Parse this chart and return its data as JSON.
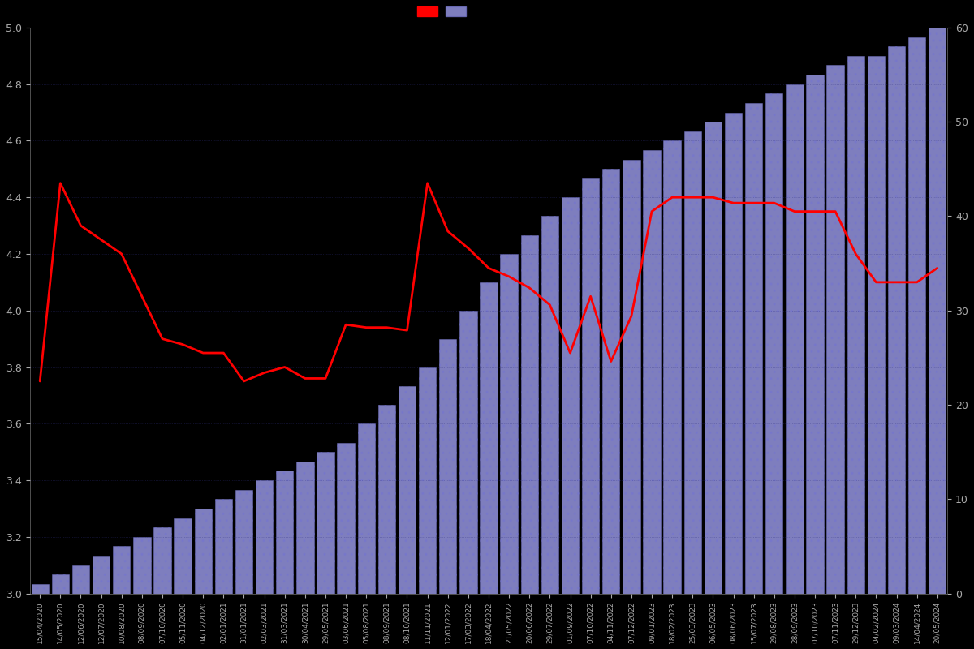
{
  "background_color": "#000000",
  "bar_color": "#aaaaff",
  "bar_edge_color": "#7777cc",
  "line_color": "#ff0000",
  "line_width": 2.0,
  "left_ylim": [
    3.0,
    5.0
  ],
  "right_ylim": [
    0,
    60
  ],
  "left_yticks": [
    3.0,
    3.2,
    3.4,
    3.6,
    3.8,
    4.0,
    4.2,
    4.4,
    4.6,
    4.8,
    5.0
  ],
  "right_yticks": [
    0,
    10,
    20,
    30,
    40,
    50,
    60
  ],
  "dates": [
    "15/04/2020",
    "14/05/2020",
    "12/06/2020",
    "12/07/2020",
    "10/08/2020",
    "08/09/2020",
    "07/10/2020",
    "05/11/2020",
    "04/12/2020",
    "02/01/2021",
    "31/01/2021",
    "02/03/2021",
    "31/03/2021",
    "30/04/2021",
    "29/05/2021",
    "03/06/2021",
    "05/08/2021",
    "08/09/2021",
    "08/10/2021",
    "11/11/2021",
    "12/01/2022",
    "17/03/2022",
    "18/04/2022",
    "21/05/2022",
    "20/06/2022",
    "29/07/2022",
    "01/09/2022",
    "07/10/2022",
    "04/11/2022",
    "07/12/2022",
    "09/01/2023",
    "18/02/2023",
    "25/03/2023",
    "06/05/2023",
    "08/06/2023",
    "15/07/2023",
    "29/08/2023",
    "28/09/2023",
    "07/10/2023",
    "07/11/2023",
    "29/12/2023",
    "04/02/2024",
    "09/03/2024",
    "14/04/2024",
    "20/05/2024"
  ],
  "cumulative_reviews": [
    1,
    2,
    3,
    4,
    5,
    6,
    7,
    8,
    9,
    10,
    11,
    12,
    13,
    14,
    15,
    16,
    18,
    20,
    22,
    24,
    27,
    30,
    33,
    36,
    38,
    40,
    42,
    44,
    45,
    46,
    47,
    48,
    49,
    50,
    51,
    52,
    53,
    54,
    55,
    56,
    57,
    57,
    58,
    59,
    60
  ],
  "avg_ratings": [
    3.75,
    4.45,
    4.3,
    4.25,
    4.2,
    4.05,
    3.9,
    3.88,
    3.85,
    3.85,
    3.75,
    3.78,
    3.8,
    3.76,
    3.76,
    3.95,
    3.94,
    3.94,
    3.93,
    4.45,
    4.28,
    4.22,
    4.15,
    4.12,
    4.08,
    4.02,
    3.85,
    4.05,
    3.82,
    3.98,
    4.35,
    4.4,
    4.4,
    4.4,
    4.38,
    4.38,
    4.38,
    4.35,
    4.35,
    4.35,
    4.2,
    4.1,
    4.1,
    4.1,
    4.15
  ],
  "text_color": "#aaaaaa",
  "grid_color": "#222222",
  "dot_color": "#333388"
}
